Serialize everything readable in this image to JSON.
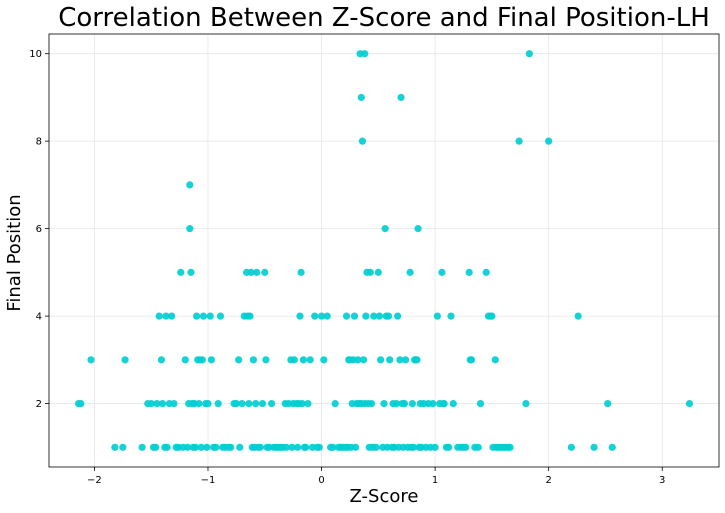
{
  "chart_data": {
    "type": "scatter",
    "title": "Correlation Between Z-Score and Final Position-LH",
    "xlabel": "Z-Score",
    "ylabel": "Final Position",
    "xlim": [
      -2.4,
      3.5
    ],
    "ylim": [
      0.55,
      10.45
    ],
    "xticks": [
      -2,
      -1,
      0,
      1,
      2,
      3
    ],
    "xtick_labels": [
      "−2",
      "−1",
      "0",
      "1",
      "2",
      "3"
    ],
    "yticks": [
      2,
      4,
      6,
      8,
      10
    ],
    "ytick_labels": [
      "2",
      "4",
      "6",
      "8",
      "10"
    ],
    "grid": true,
    "marker_color": "#00CED1",
    "series": [
      {
        "points": [
          [
            -2.14,
            2
          ],
          [
            -2.12,
            2
          ],
          [
            -2.03,
            3
          ],
          [
            -1.82,
            1
          ],
          [
            -1.75,
            1
          ],
          [
            -1.73,
            3
          ],
          [
            -1.58,
            1
          ],
          [
            -1.53,
            2
          ],
          [
            -1.5,
            2
          ],
          [
            -1.48,
            1
          ],
          [
            -1.46,
            1
          ],
          [
            -1.45,
            2
          ],
          [
            -1.43,
            4
          ],
          [
            -1.41,
            3
          ],
          [
            -1.4,
            2
          ],
          [
            -1.38,
            1
          ],
          [
            -1.37,
            4
          ],
          [
            -1.36,
            1
          ],
          [
            -1.34,
            2
          ],
          [
            -1.32,
            4
          ],
          [
            -1.3,
            2
          ],
          [
            -1.28,
            1
          ],
          [
            -1.26,
            1
          ],
          [
            -1.24,
            5
          ],
          [
            -1.22,
            1
          ],
          [
            -1.2,
            3
          ],
          [
            -1.18,
            1
          ],
          [
            -1.17,
            2
          ],
          [
            -1.16,
            7
          ],
          [
            -1.16,
            6
          ],
          [
            -1.15,
            5
          ],
          [
            -1.14,
            2
          ],
          [
            -1.13,
            1
          ],
          [
            -1.12,
            2
          ],
          [
            -1.11,
            1
          ],
          [
            -1.1,
            4
          ],
          [
            -1.09,
            3
          ],
          [
            -1.08,
            2
          ],
          [
            -1.07,
            3
          ],
          [
            -1.06,
            1
          ],
          [
            -1.05,
            3
          ],
          [
            -1.04,
            4
          ],
          [
            -1.02,
            2
          ],
          [
            -1.01,
            1
          ],
          [
            -1.0,
            2
          ],
          [
            -0.98,
            4
          ],
          [
            -0.97,
            3
          ],
          [
            -0.95,
            1
          ],
          [
            -0.93,
            1
          ],
          [
            -0.91,
            2
          ],
          [
            -0.89,
            4
          ],
          [
            -0.87,
            1
          ],
          [
            -0.85,
            1
          ],
          [
            -0.82,
            1
          ],
          [
            -0.8,
            1
          ],
          [
            -0.77,
            2
          ],
          [
            -0.75,
            2
          ],
          [
            -0.73,
            3
          ],
          [
            -0.72,
            1
          ],
          [
            -0.7,
            2
          ],
          [
            -0.68,
            4
          ],
          [
            -0.66,
            5
          ],
          [
            -0.65,
            4
          ],
          [
            -0.64,
            2
          ],
          [
            -0.63,
            4
          ],
          [
            -0.62,
            5
          ],
          [
            -0.61,
            1
          ],
          [
            -0.6,
            3
          ],
          [
            -0.59,
            1
          ],
          [
            -0.58,
            2
          ],
          [
            -0.57,
            5
          ],
          [
            -0.56,
            1
          ],
          [
            -0.54,
            1
          ],
          [
            -0.52,
            2
          ],
          [
            -0.5,
            5
          ],
          [
            -0.49,
            3
          ],
          [
            -0.48,
            1
          ],
          [
            -0.46,
            1
          ],
          [
            -0.44,
            2
          ],
          [
            -0.42,
            1
          ],
          [
            -0.4,
            1
          ],
          [
            -0.38,
            1
          ],
          [
            -0.36,
            1
          ],
          [
            -0.34,
            1
          ],
          [
            -0.32,
            2
          ],
          [
            -0.31,
            1
          ],
          [
            -0.29,
            2
          ],
          [
            -0.27,
            3
          ],
          [
            -0.26,
            1
          ],
          [
            -0.25,
            2
          ],
          [
            -0.24,
            3
          ],
          [
            -0.22,
            2
          ],
          [
            -0.21,
            1
          ],
          [
            -0.2,
            2
          ],
          [
            -0.19,
            4
          ],
          [
            -0.18,
            5
          ],
          [
            -0.17,
            2
          ],
          [
            -0.16,
            3
          ],
          [
            -0.15,
            1
          ],
          [
            -0.14,
            1
          ],
          [
            -0.12,
            2
          ],
          [
            -0.1,
            3
          ],
          [
            -0.08,
            1
          ],
          [
            -0.06,
            4
          ],
          [
            -0.04,
            1
          ],
          [
            -0.02,
            1
          ],
          [
            0.0,
            4
          ],
          [
            0.02,
            3
          ],
          [
            0.05,
            4
          ],
          [
            0.08,
            1
          ],
          [
            0.1,
            1
          ],
          [
            0.12,
            2
          ],
          [
            0.15,
            1
          ],
          [
            0.17,
            1
          ],
          [
            0.19,
            1
          ],
          [
            0.21,
            1
          ],
          [
            0.22,
            4
          ],
          [
            0.23,
            1
          ],
          [
            0.24,
            3
          ],
          [
            0.25,
            3
          ],
          [
            0.26,
            1
          ],
          [
            0.27,
            2
          ],
          [
            0.28,
            3
          ],
          [
            0.29,
            4
          ],
          [
            0.3,
            1
          ],
          [
            0.31,
            2
          ],
          [
            0.32,
            3
          ],
          [
            0.33,
            2
          ],
          [
            0.34,
            10
          ],
          [
            0.35,
            2
          ],
          [
            0.35,
            9
          ],
          [
            0.36,
            8
          ],
          [
            0.37,
            3
          ],
          [
            0.38,
            10
          ],
          [
            0.38,
            2
          ],
          [
            0.39,
            4
          ],
          [
            0.4,
            5
          ],
          [
            0.41,
            2
          ],
          [
            0.42,
            1
          ],
          [
            0.43,
            5
          ],
          [
            0.44,
            2
          ],
          [
            0.45,
            1
          ],
          [
            0.46,
            4
          ],
          [
            0.48,
            1
          ],
          [
            0.5,
            5
          ],
          [
            0.51,
            4
          ],
          [
            0.52,
            3
          ],
          [
            0.54,
            1
          ],
          [
            0.55,
            2
          ],
          [
            0.56,
            6
          ],
          [
            0.57,
            4
          ],
          [
            0.58,
            1
          ],
          [
            0.59,
            4
          ],
          [
            0.6,
            3
          ],
          [
            0.62,
            1
          ],
          [
            0.63,
            2
          ],
          [
            0.64,
            1
          ],
          [
            0.66,
            2
          ],
          [
            0.67,
            4
          ],
          [
            0.68,
            1
          ],
          [
            0.69,
            3
          ],
          [
            0.7,
            9
          ],
          [
            0.71,
            2
          ],
          [
            0.72,
            1
          ],
          [
            0.73,
            2
          ],
          [
            0.74,
            3
          ],
          [
            0.76,
            1
          ],
          [
            0.78,
            5
          ],
          [
            0.79,
            1
          ],
          [
            0.8,
            2
          ],
          [
            0.81,
            1
          ],
          [
            0.82,
            3
          ],
          [
            0.83,
            3
          ],
          [
            0.84,
            3
          ],
          [
            0.85,
            6
          ],
          [
            0.86,
            1
          ],
          [
            0.87,
            2
          ],
          [
            0.88,
            1
          ],
          [
            0.9,
            2
          ],
          [
            0.92,
            1
          ],
          [
            0.94,
            2
          ],
          [
            0.96,
            1
          ],
          [
            0.98,
            2
          ],
          [
            1.0,
            1
          ],
          [
            1.02,
            4
          ],
          [
            1.04,
            2
          ],
          [
            1.06,
            5
          ],
          [
            1.07,
            2
          ],
          [
            1.08,
            2
          ],
          [
            1.1,
            1
          ],
          [
            1.12,
            1
          ],
          [
            1.14,
            4
          ],
          [
            1.16,
            2
          ],
          [
            1.2,
            1
          ],
          [
            1.23,
            1
          ],
          [
            1.25,
            1
          ],
          [
            1.27,
            1
          ],
          [
            1.3,
            5
          ],
          [
            1.31,
            3
          ],
          [
            1.32,
            3
          ],
          [
            1.35,
            1
          ],
          [
            1.38,
            1
          ],
          [
            1.4,
            2
          ],
          [
            1.45,
            5
          ],
          [
            1.47,
            4
          ],
          [
            1.49,
            4
          ],
          [
            1.5,
            4
          ],
          [
            1.51,
            1
          ],
          [
            1.53,
            3
          ],
          [
            1.54,
            1
          ],
          [
            1.56,
            1
          ],
          [
            1.58,
            1
          ],
          [
            1.6,
            1
          ],
          [
            1.62,
            1
          ],
          [
            1.64,
            1
          ],
          [
            1.66,
            1
          ],
          [
            1.74,
            8
          ],
          [
            1.8,
            2
          ],
          [
            1.83,
            10
          ],
          [
            2.0,
            8
          ],
          [
            2.2,
            1
          ],
          [
            2.26,
            4
          ],
          [
            2.4,
            1
          ],
          [
            2.52,
            2
          ],
          [
            2.56,
            1
          ],
          [
            3.24,
            2
          ]
        ]
      }
    ]
  }
}
